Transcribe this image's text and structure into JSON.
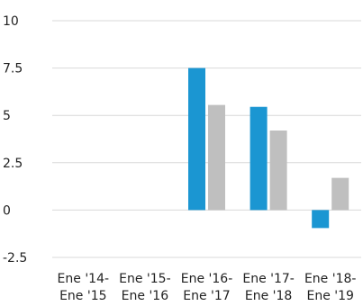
{
  "chart_data": {
    "type": "bar",
    "categories": [
      [
        "Ene '14-",
        "Ene '15"
      ],
      [
        "Ene '15-",
        "Ene '16"
      ],
      [
        "Ene '16-",
        "Ene '17"
      ],
      [
        "Ene '17-",
        "Ene '18"
      ],
      [
        "Ene '18-",
        "Ene '19"
      ]
    ],
    "series": [
      {
        "values": [
          null,
          null,
          7.5,
          5.45,
          -0.95
        ],
        "color": "#1b96d2"
      },
      {
        "values": [
          null,
          null,
          5.55,
          4.2,
          1.7
        ],
        "color": "#bfbfbf"
      }
    ],
    "y_ticks": [
      "10",
      "7.5",
      "5",
      "2.5",
      "0",
      "-2.5"
    ],
    "y_tick_values": [
      10,
      7.5,
      5,
      2.5,
      0,
      -2.5
    ],
    "ylim": [
      -2.5,
      10
    ],
    "grid": true,
    "legend": "none"
  }
}
